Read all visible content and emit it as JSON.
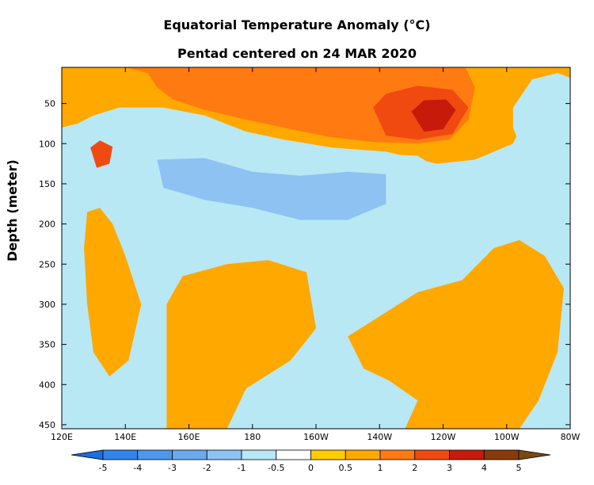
{
  "chart_data": {
    "type": "heatmap",
    "title": "Equatorial Temperature Anomaly (°C)",
    "subtitle": "Pentad centered on 24 MAR 2020",
    "ylabel": "Depth (meter)",
    "xlabel": "",
    "x_ticks": [
      "120E",
      "140E",
      "160E",
      "180",
      "160W",
      "140W",
      "120W",
      "100W",
      "80W"
    ],
    "x_tick_values": [
      120,
      140,
      160,
      180,
      200,
      220,
      240,
      260,
      280
    ],
    "xlim": [
      120,
      280
    ],
    "y_ticks": [
      "50",
      "100",
      "150",
      "200",
      "250",
      "300",
      "350",
      "400",
      "450"
    ],
    "y_tick_values": [
      50,
      100,
      150,
      200,
      250,
      300,
      350,
      400,
      450
    ],
    "ylim": [
      5,
      455
    ],
    "y_inverted": true,
    "colorbar": {
      "labels": [
        "-5",
        "-4",
        "-3",
        "-2",
        "-1",
        "-0.5",
        "0",
        "0.5",
        "1",
        "2",
        "3",
        "4",
        "5"
      ],
      "levels": [
        -5,
        -4,
        -3,
        -2,
        -1,
        -0.5,
        0,
        0.5,
        1,
        2,
        3,
        4,
        5
      ],
      "colors": [
        "#1a6fe0",
        "#2f85ea",
        "#4b98ee",
        "#6aaaf0",
        "#8ec2f2",
        "#b7e8f4",
        "#ffffff",
        "#ffcc00",
        "#ffa800",
        "#ff7a10",
        "#f04a10",
        "#c81a0a",
        "#8a3a0a",
        "#7a4a10"
      ]
    },
    "regions": [
      {
        "name": "background",
        "anomaly_range": [
          -0.5,
          0
        ]
      },
      {
        "name": "surface-warm",
        "anomaly_range": [
          0.5,
          1
        ]
      },
      {
        "name": "upper-central-warm",
        "anomaly_range": [
          1,
          2
        ]
      },
      {
        "name": "eastern-core",
        "anomaly_range": [
          2,
          3
        ]
      },
      {
        "name": "eastern-peak",
        "anomaly_range": [
          3,
          4
        ]
      },
      {
        "name": "thermocline-cool",
        "anomaly_range": [
          -1,
          -0.5
        ]
      },
      {
        "name": "thermocline-cool-core",
        "anomaly_range": [
          -2,
          -1
        ]
      },
      {
        "name": "far-east-cool",
        "anomaly_range": [
          -1,
          -0.5
        ]
      },
      {
        "name": "deep-warm-west",
        "anomaly_range": [
          0.5,
          1
        ]
      },
      {
        "name": "deep-warm-central",
        "anomaly_range": [
          0.5,
          1
        ]
      },
      {
        "name": "deep-warm-east",
        "anomaly_range": [
          0.5,
          1
        ]
      },
      {
        "name": "west-warm-blob",
        "anomaly_range": [
          2,
          3
        ]
      }
    ]
  }
}
